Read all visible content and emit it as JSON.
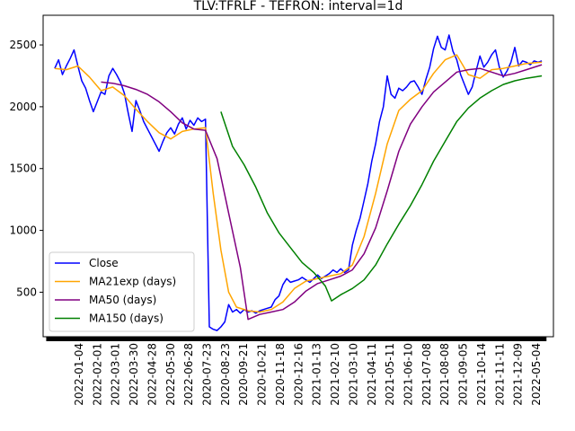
{
  "chart_data": {
    "type": "line",
    "title": "TLV:TFRLF - TEFRON: interval=1d",
    "xlabel": "",
    "ylabel": "",
    "ylim": [
      140,
      2740
    ],
    "y_ticks": [
      500,
      1000,
      1500,
      2000,
      2500
    ],
    "x_ticks": [
      "2022-01-04",
      "2022-02-01",
      "2022-03-01",
      "2022-03-30",
      "2022-04-28",
      "2022-05-30",
      "2022-06-28",
      "2020-07-23",
      "2020-08-23",
      "2020-09-21",
      "2020-10-21",
      "2020-11-18",
      "2020-12-16",
      "2021-01-13",
      "2021-02-10",
      "2021-03-10",
      "2021-04-11",
      "2021-05-11",
      "2021-06-10",
      "2021-07-08",
      "2021-08-08",
      "2021-09-05",
      "2021-10-14",
      "2021-11-11",
      "2021-12-09",
      "2022-05-04"
    ],
    "legend_position": "lower-left",
    "grid": false,
    "series": [
      {
        "name": "Close",
        "color": "#0000ff",
        "points": [
          [
            0.0,
            2310
          ],
          [
            0.5,
            2380
          ],
          [
            1.0,
            2260
          ],
          [
            1.5,
            2330
          ],
          [
            2.0,
            2390
          ],
          [
            2.5,
            2460
          ],
          [
            3.0,
            2330
          ],
          [
            3.5,
            2210
          ],
          [
            4.0,
            2150
          ],
          [
            4.5,
            2050
          ],
          [
            5.0,
            1960
          ],
          [
            5.5,
            2040
          ],
          [
            6.0,
            2120
          ],
          [
            6.5,
            2100
          ],
          [
            7.0,
            2250
          ],
          [
            7.5,
            2310
          ],
          [
            8.0,
            2260
          ],
          [
            8.5,
            2200
          ],
          [
            9.0,
            2110
          ],
          [
            9.5,
            1950
          ],
          [
            10.0,
            1800
          ],
          [
            10.5,
            2050
          ],
          [
            11.0,
            1970
          ],
          [
            11.5,
            1880
          ],
          [
            12.0,
            1820
          ],
          [
            12.5,
            1760
          ],
          [
            13.0,
            1700
          ],
          [
            13.5,
            1640
          ],
          [
            14.0,
            1720
          ],
          [
            14.5,
            1790
          ],
          [
            15.0,
            1830
          ],
          [
            15.5,
            1780
          ],
          [
            16.0,
            1860
          ],
          [
            16.5,
            1910
          ],
          [
            17.0,
            1820
          ],
          [
            17.5,
            1890
          ],
          [
            18.0,
            1850
          ],
          [
            18.5,
            1910
          ],
          [
            19.0,
            1880
          ],
          [
            19.5,
            1900
          ],
          [
            20.0,
            220
          ],
          [
            20.5,
            200
          ],
          [
            21.0,
            190
          ],
          [
            21.5,
            220
          ],
          [
            22.0,
            260
          ],
          [
            22.5,
            400
          ],
          [
            23.0,
            340
          ],
          [
            23.5,
            360
          ],
          [
            24.0,
            330
          ],
          [
            24.5,
            360
          ],
          [
            25.0,
            340
          ],
          [
            25.5,
            350
          ],
          [
            26.0,
            330
          ],
          [
            26.5,
            350
          ],
          [
            27.0,
            360
          ],
          [
            27.5,
            370
          ],
          [
            28.0,
            380
          ],
          [
            28.5,
            440
          ],
          [
            29.0,
            470
          ],
          [
            29.5,
            560
          ],
          [
            30.0,
            610
          ],
          [
            30.5,
            580
          ],
          [
            31.0,
            590
          ],
          [
            31.5,
            600
          ],
          [
            32.0,
            620
          ],
          [
            32.5,
            600
          ],
          [
            33.0,
            580
          ],
          [
            33.5,
            610
          ],
          [
            34.0,
            640
          ],
          [
            34.5,
            610
          ],
          [
            35.0,
            630
          ],
          [
            35.5,
            650
          ],
          [
            36.0,
            680
          ],
          [
            36.5,
            660
          ],
          [
            37.0,
            690
          ],
          [
            37.5,
            660
          ],
          [
            38.0,
            680
          ],
          [
            38.5,
            880
          ],
          [
            39.0,
            1000
          ],
          [
            39.5,
            1100
          ],
          [
            40.0,
            1240
          ],
          [
            40.5,
            1380
          ],
          [
            41.0,
            1560
          ],
          [
            41.5,
            1700
          ],
          [
            42.0,
            1880
          ],
          [
            42.5,
            2000
          ],
          [
            43.0,
            2250
          ],
          [
            43.5,
            2100
          ],
          [
            44.0,
            2070
          ],
          [
            44.5,
            2150
          ],
          [
            45.0,
            2130
          ],
          [
            45.5,
            2160
          ],
          [
            46.0,
            2200
          ],
          [
            46.5,
            2210
          ],
          [
            47.0,
            2160
          ],
          [
            47.5,
            2100
          ],
          [
            48.0,
            2220
          ],
          [
            48.5,
            2320
          ],
          [
            49.0,
            2470
          ],
          [
            49.5,
            2570
          ],
          [
            50.0,
            2480
          ],
          [
            50.5,
            2460
          ],
          [
            51.0,
            2580
          ],
          [
            51.5,
            2450
          ],
          [
            52.0,
            2380
          ],
          [
            52.5,
            2260
          ],
          [
            53.0,
            2180
          ],
          [
            53.5,
            2100
          ],
          [
            54.0,
            2160
          ],
          [
            54.5,
            2290
          ],
          [
            55.0,
            2410
          ],
          [
            55.5,
            2320
          ],
          [
            56.0,
            2360
          ],
          [
            56.5,
            2420
          ],
          [
            57.0,
            2460
          ],
          [
            57.5,
            2320
          ],
          [
            58.0,
            2240
          ],
          [
            58.5,
            2290
          ],
          [
            59.0,
            2360
          ],
          [
            59.5,
            2480
          ],
          [
            60.0,
            2330
          ],
          [
            60.5,
            2370
          ],
          [
            61.0,
            2360
          ],
          [
            61.5,
            2340
          ],
          [
            62.0,
            2370
          ],
          [
            62.5,
            2360
          ],
          [
            63.0,
            2370
          ]
        ]
      },
      {
        "name": "MA21exp (days)",
        "color": "#ffa500",
        "points": [
          [
            0.0,
            2310
          ],
          [
            1.5,
            2300
          ],
          [
            3.0,
            2330
          ],
          [
            4.5,
            2240
          ],
          [
            6.0,
            2130
          ],
          [
            7.5,
            2160
          ],
          [
            9.0,
            2090
          ],
          [
            10.5,
            1980
          ],
          [
            12.0,
            1880
          ],
          [
            13.5,
            1790
          ],
          [
            15.0,
            1740
          ],
          [
            16.5,
            1800
          ],
          [
            18.0,
            1820
          ],
          [
            19.5,
            1830
          ],
          [
            20.5,
            1300
          ],
          [
            21.5,
            840
          ],
          [
            22.5,
            500
          ],
          [
            23.5,
            380
          ],
          [
            25.0,
            350
          ],
          [
            26.5,
            340
          ],
          [
            28.0,
            360
          ],
          [
            29.5,
            420
          ],
          [
            31.0,
            530
          ],
          [
            32.5,
            590
          ],
          [
            34.0,
            610
          ],
          [
            35.5,
            630
          ],
          [
            37.0,
            650
          ],
          [
            38.5,
            720
          ],
          [
            40.0,
            950
          ],
          [
            41.5,
            1300
          ],
          [
            43.0,
            1700
          ],
          [
            44.5,
            1970
          ],
          [
            46.0,
            2060
          ],
          [
            47.5,
            2130
          ],
          [
            49.0,
            2270
          ],
          [
            50.5,
            2380
          ],
          [
            52.0,
            2420
          ],
          [
            53.5,
            2260
          ],
          [
            55.0,
            2230
          ],
          [
            56.5,
            2300
          ],
          [
            58.0,
            2310
          ],
          [
            59.5,
            2330
          ],
          [
            61.0,
            2350
          ],
          [
            63.0,
            2360
          ]
        ]
      },
      {
        "name": "MA50 (days)",
        "color": "#800080",
        "points": [
          [
            6.0,
            2200
          ],
          [
            7.5,
            2190
          ],
          [
            9.0,
            2170
          ],
          [
            10.5,
            2140
          ],
          [
            12.0,
            2100
          ],
          [
            13.5,
            2040
          ],
          [
            15.0,
            1960
          ],
          [
            16.5,
            1870
          ],
          [
            18.0,
            1820
          ],
          [
            19.5,
            1810
          ],
          [
            21.0,
            1580
          ],
          [
            22.5,
            1140
          ],
          [
            24.0,
            700
          ],
          [
            25.0,
            280
          ],
          [
            26.5,
            320
          ],
          [
            28.0,
            340
          ],
          [
            29.5,
            360
          ],
          [
            31.0,
            420
          ],
          [
            32.5,
            510
          ],
          [
            34.0,
            570
          ],
          [
            35.5,
            600
          ],
          [
            37.0,
            630
          ],
          [
            38.5,
            680
          ],
          [
            40.0,
            810
          ],
          [
            41.5,
            1020
          ],
          [
            43.0,
            1320
          ],
          [
            44.5,
            1640
          ],
          [
            46.0,
            1860
          ],
          [
            47.5,
            2000
          ],
          [
            49.0,
            2120
          ],
          [
            50.5,
            2200
          ],
          [
            52.0,
            2280
          ],
          [
            53.5,
            2300
          ],
          [
            55.0,
            2310
          ],
          [
            56.5,
            2280
          ],
          [
            58.0,
            2250
          ],
          [
            59.5,
            2270
          ],
          [
            61.0,
            2300
          ],
          [
            63.0,
            2340
          ]
        ]
      },
      {
        "name": "MA150 (days)",
        "color": "#008000",
        "points": [
          [
            21.5,
            1960
          ],
          [
            23.0,
            1680
          ],
          [
            24.5,
            1530
          ],
          [
            26.0,
            1350
          ],
          [
            27.5,
            1140
          ],
          [
            29.0,
            980
          ],
          [
            30.5,
            860
          ],
          [
            32.0,
            740
          ],
          [
            33.5,
            660
          ],
          [
            35.0,
            550
          ],
          [
            35.8,
            430
          ],
          [
            37.0,
            480
          ],
          [
            38.5,
            530
          ],
          [
            40.0,
            600
          ],
          [
            41.5,
            720
          ],
          [
            43.0,
            890
          ],
          [
            44.5,
            1050
          ],
          [
            46.0,
            1200
          ],
          [
            47.5,
            1370
          ],
          [
            49.0,
            1560
          ],
          [
            50.5,
            1720
          ],
          [
            52.0,
            1880
          ],
          [
            53.5,
            1990
          ],
          [
            55.0,
            2070
          ],
          [
            56.5,
            2130
          ],
          [
            58.0,
            2180
          ],
          [
            59.5,
            2210
          ],
          [
            61.0,
            2230
          ],
          [
            63.0,
            2250
          ]
        ]
      }
    ]
  }
}
